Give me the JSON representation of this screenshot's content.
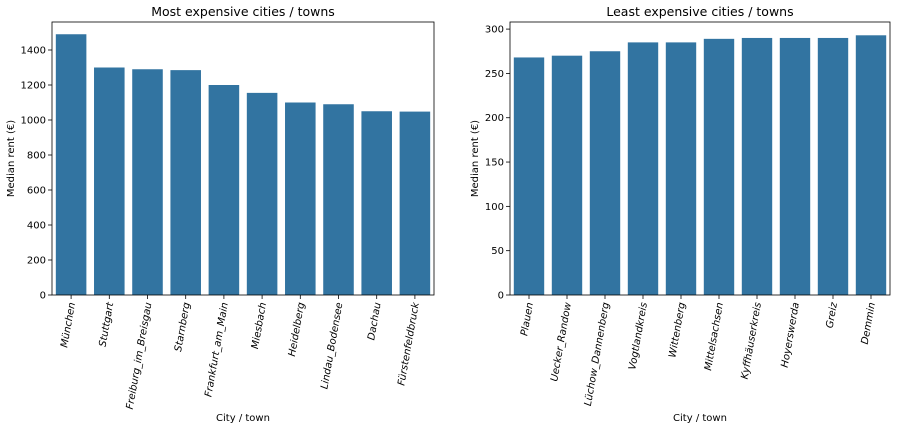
{
  "chart_data": [
    {
      "type": "bar",
      "title": "Most expensive cities / towns",
      "xlabel": "City / town",
      "ylabel": "Median rent (€)",
      "categories": [
        "München",
        "Stuttgart",
        "Freiburg_im_Breisgau",
        "Starnberg",
        "Frankfurt_am_Main",
        "Miesbach",
        "Heidelberg",
        "Lindau_Bodensee",
        "Dachau",
        "Fürstenfeldbruck"
      ],
      "values": [
        1490,
        1300,
        1290,
        1285,
        1200,
        1155,
        1100,
        1090,
        1050,
        1048
      ],
      "ylim": [
        0,
        1560
      ],
      "yticks": [
        0,
        200,
        400,
        600,
        800,
        1000,
        1200,
        1400
      ],
      "color": "#3274a1",
      "grid": false
    },
    {
      "type": "bar",
      "title": "Least expensive cities / towns",
      "xlabel": "City / town",
      "ylabel": "Median rent (€)",
      "categories": [
        "Plauen",
        "Uecker_Randow",
        "Lüchow_Dannenberg",
        "Vogtlandkreis",
        "Wittenberg",
        "Mittelsachsen",
        "Kyffhäuserkreis",
        "Hoyerswerda",
        "Greiz",
        "Demmin"
      ],
      "values": [
        268,
        270,
        275,
        285,
        285,
        289,
        290,
        290,
        290,
        293
      ],
      "ylim": [
        0,
        308
      ],
      "yticks": [
        0,
        50,
        100,
        150,
        200,
        250,
        300
      ],
      "color": "#3274a1",
      "grid": false
    }
  ]
}
